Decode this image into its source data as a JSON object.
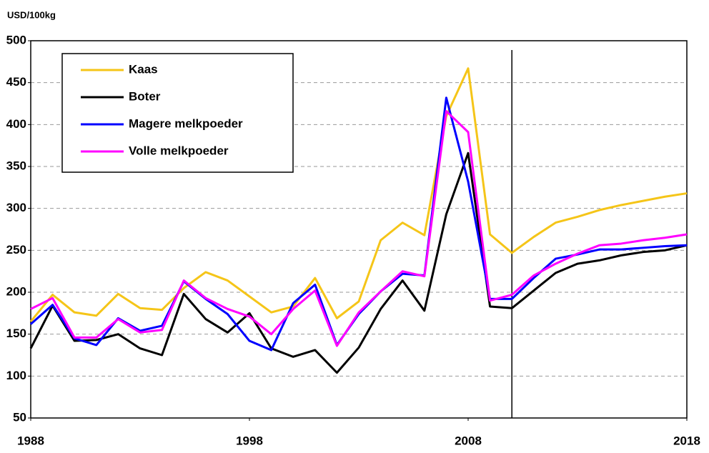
{
  "chart_data": {
    "type": "line",
    "y_axis_label": "USD/100kg",
    "x": [
      1988,
      1989,
      1990,
      1991,
      1992,
      1993,
      1994,
      1995,
      1996,
      1997,
      1998,
      1999,
      2000,
      2001,
      2002,
      2003,
      2004,
      2005,
      2006,
      2007,
      2008,
      2009,
      2010,
      2011,
      2012,
      2013,
      2014,
      2015,
      2016,
      2017,
      2018
    ],
    "xlim": [
      1988,
      2018
    ],
    "xticks": [
      1988,
      1998,
      2008,
      2018
    ],
    "ylim": [
      50,
      500
    ],
    "yticks": [
      50,
      100,
      150,
      200,
      250,
      300,
      350,
      400,
      450,
      500
    ],
    "grid": true,
    "reference_line_x": 2010,
    "legend": "upper left",
    "series": [
      {
        "name": "Kaas",
        "color": "#f5c518",
        "values": [
          165,
          197,
          176,
          172,
          198,
          181,
          179,
          205,
          224,
          214,
          195,
          176,
          183,
          217,
          169,
          189,
          262,
          283,
          268,
          410,
          467,
          269,
          247,
          266,
          283,
          290,
          298,
          304,
          309,
          314,
          318
        ]
      },
      {
        "name": "Boter",
        "color": "#000000",
        "values": [
          133,
          184,
          142,
          143,
          150,
          133,
          125,
          198,
          168,
          152,
          175,
          133,
          123,
          131,
          104,
          134,
          180,
          214,
          178,
          293,
          366,
          183,
          181,
          202,
          223,
          234,
          238,
          244,
          248,
          250,
          256
        ]
      },
      {
        "name": "Magere melkpoeder",
        "color": "#0000ff",
        "values": [
          162,
          185,
          145,
          137,
          169,
          154,
          160,
          213,
          192,
          174,
          142,
          131,
          187,
          209,
          137,
          174,
          201,
          222,
          220,
          432,
          332,
          192,
          192,
          217,
          240,
          245,
          251,
          251,
          253,
          255,
          256
        ]
      },
      {
        "name": "Volle melkpoeder",
        "color": "#ff00ff",
        "values": [
          180,
          193,
          146,
          146,
          168,
          152,
          155,
          214,
          193,
          180,
          171,
          150,
          180,
          202,
          136,
          176,
          201,
          225,
          219,
          416,
          391,
          190,
          197,
          220,
          234,
          246,
          256,
          258,
          262,
          265,
          269
        ]
      }
    ]
  }
}
